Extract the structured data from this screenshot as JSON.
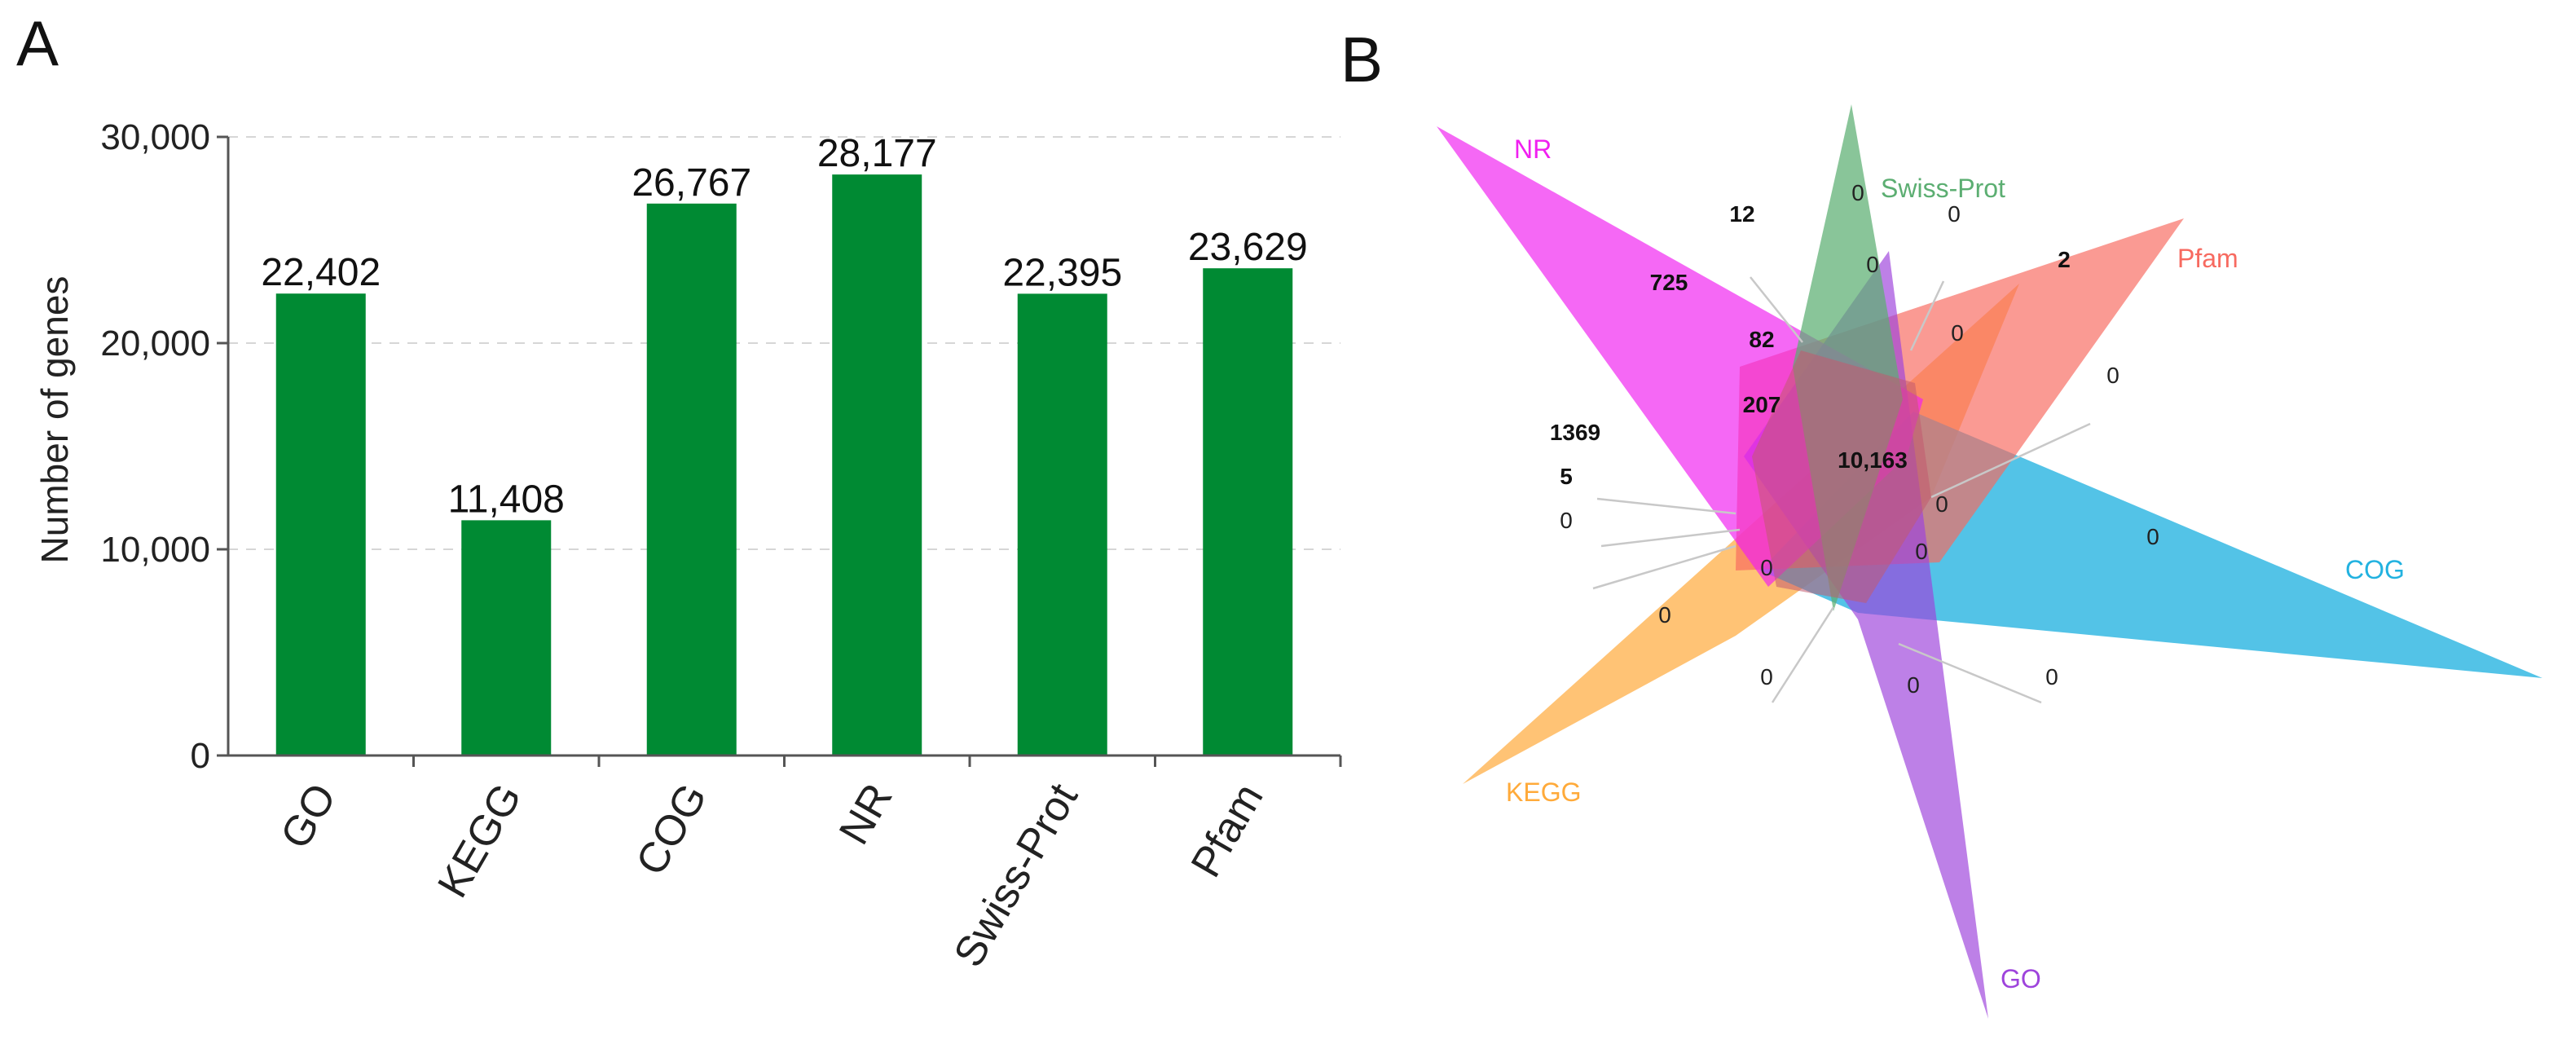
{
  "panels": {
    "a_label": "A",
    "b_label": "B"
  },
  "chart_data": [
    {
      "type": "bar",
      "title": "",
      "xlabel": "",
      "ylabel": "Number of genes",
      "categories": [
        "GO",
        "KEGG",
        "COG",
        "NR",
        "Swiss-Prot",
        "Pfam"
      ],
      "values": [
        22402,
        11408,
        26767,
        28177,
        22395,
        23629
      ],
      "value_labels": [
        "22,402",
        "11,408",
        "26,767",
        "28,177",
        "22,395",
        "23,629"
      ],
      "ylim": [
        0,
        30000
      ],
      "yticks": [
        0,
        10000,
        20000,
        30000
      ],
      "ytick_labels": [
        "0",
        "10,000",
        "20,000",
        "30,000"
      ],
      "grid": "horizontal dashed",
      "color": "#008a33"
    },
    {
      "type": "venn",
      "sets": [
        {
          "name": "NR",
          "color": "#f020f0"
        },
        {
          "name": "Swiss-Prot",
          "color": "#5cae72"
        },
        {
          "name": "Pfam",
          "color": "#f76a60"
        },
        {
          "name": "COG",
          "color": "#22b2e0"
        },
        {
          "name": "GO",
          "color": "#9e44dc"
        },
        {
          "name": "KEGG",
          "color": "#ffaa3a"
        }
      ],
      "regions": [
        {
          "label": "12",
          "bold": true
        },
        {
          "label": "725",
          "bold": true
        },
        {
          "label": "82",
          "bold": true
        },
        {
          "label": "207",
          "bold": true
        },
        {
          "label": "1369",
          "bold": true
        },
        {
          "label": "5",
          "bold": true
        },
        {
          "label": "10,163",
          "bold": true
        },
        {
          "label": "2",
          "bold": true
        },
        {
          "label": "0",
          "bold": false
        },
        {
          "label": "0",
          "bold": false
        },
        {
          "label": "0",
          "bold": false
        },
        {
          "label": "0",
          "bold": false
        },
        {
          "label": "0",
          "bold": false
        },
        {
          "label": "0",
          "bold": false
        },
        {
          "label": "0",
          "bold": false
        },
        {
          "label": "0",
          "bold": false
        },
        {
          "label": "0",
          "bold": false
        },
        {
          "label": "0",
          "bold": false
        },
        {
          "label": "0",
          "bold": false
        },
        {
          "label": "0",
          "bold": false
        },
        {
          "label": "0",
          "bold": false
        },
        {
          "label": "0",
          "bold": false
        }
      ]
    }
  ]
}
